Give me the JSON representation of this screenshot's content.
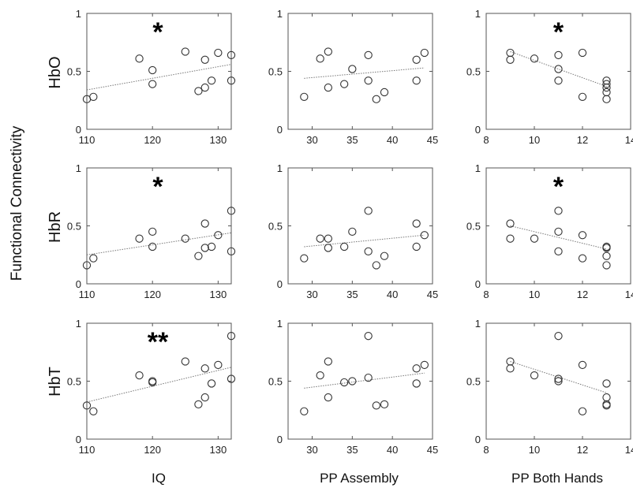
{
  "figure": {
    "ylabel": "Functional Connectivity",
    "row_labels": [
      "HbO",
      "HbR",
      "HbT"
    ],
    "col_labels": [
      "IQ",
      "PP Assembly",
      "PP Both Hands"
    ]
  },
  "chart_data": [
    {
      "type": "scatter",
      "row": "HbO",
      "col": "IQ",
      "xlim": [
        110,
        132
      ],
      "ylim": [
        0,
        1
      ],
      "xticks": [
        110,
        120,
        130
      ],
      "yticks": [
        0,
        0.5,
        1
      ],
      "ytick_labels": [
        "0",
        "0.5",
        "1"
      ],
      "annotation": "*",
      "points": [
        [
          110,
          0.26
        ],
        [
          111,
          0.28
        ],
        [
          118,
          0.61
        ],
        [
          120,
          0.51
        ],
        [
          120,
          0.39
        ],
        [
          125,
          0.67
        ],
        [
          127,
          0.33
        ],
        [
          128,
          0.6
        ],
        [
          128,
          0.36
        ],
        [
          129,
          0.42
        ],
        [
          130,
          0.66
        ],
        [
          132,
          0.64
        ],
        [
          132,
          0.42
        ]
      ],
      "fit": [
        [
          110,
          0.34
        ],
        [
          132,
          0.56
        ]
      ]
    },
    {
      "type": "scatter",
      "row": "HbO",
      "col": "PP Assembly",
      "xlim": [
        27,
        45
      ],
      "ylim": [
        0,
        1
      ],
      "xticks": [
        30,
        35,
        40,
        45
      ],
      "yticks": [
        0,
        0.5,
        1
      ],
      "ytick_labels": [
        "0",
        "0.5",
        "1"
      ],
      "annotation": "",
      "points": [
        [
          29,
          0.28
        ],
        [
          31,
          0.61
        ],
        [
          32,
          0.67
        ],
        [
          32,
          0.36
        ],
        [
          34,
          0.39
        ],
        [
          35,
          0.52
        ],
        [
          37,
          0.64
        ],
        [
          37,
          0.42
        ],
        [
          38,
          0.26
        ],
        [
          39,
          0.32
        ],
        [
          43,
          0.6
        ],
        [
          43,
          0.42
        ],
        [
          44,
          0.66
        ]
      ],
      "fit": [
        [
          29,
          0.44
        ],
        [
          44,
          0.53
        ]
      ]
    },
    {
      "type": "scatter",
      "row": "HbO",
      "col": "PP Both Hands",
      "xlim": [
        8,
        14
      ],
      "ylim": [
        0,
        1
      ],
      "xticks": [
        8,
        10,
        12,
        14
      ],
      "yticks": [
        0,
        0.5,
        1
      ],
      "ytick_labels": [
        "0",
        "0.5",
        "1"
      ],
      "annotation": "*",
      "points": [
        [
          9,
          0.66
        ],
        [
          9,
          0.6
        ],
        [
          10,
          0.61
        ],
        [
          11,
          0.64
        ],
        [
          11,
          0.52
        ],
        [
          11,
          0.42
        ],
        [
          12,
          0.66
        ],
        [
          12,
          0.28
        ],
        [
          13,
          0.42
        ],
        [
          13,
          0.39
        ],
        [
          13,
          0.36
        ],
        [
          13,
          0.32
        ],
        [
          13,
          0.26
        ]
      ],
      "fit": [
        [
          9,
          0.67
        ],
        [
          13,
          0.37
        ]
      ]
    },
    {
      "type": "scatter",
      "row": "HbR",
      "col": "IQ",
      "xlim": [
        110,
        132
      ],
      "ylim": [
        0,
        1
      ],
      "xticks": [
        110,
        120,
        130
      ],
      "yticks": [
        0,
        0.5,
        1
      ],
      "ytick_labels": [
        "0",
        "0.5",
        "1"
      ],
      "annotation": "*",
      "points": [
        [
          110,
          0.16
        ],
        [
          111,
          0.22
        ],
        [
          118,
          0.39
        ],
        [
          120,
          0.45
        ],
        [
          120,
          0.32
        ],
        [
          125,
          0.39
        ],
        [
          127,
          0.24
        ],
        [
          128,
          0.52
        ],
        [
          128,
          0.31
        ],
        [
          129,
          0.32
        ],
        [
          130,
          0.42
        ],
        [
          132,
          0.63
        ],
        [
          132,
          0.28
        ]
      ],
      "fit": [
        [
          110,
          0.25
        ],
        [
          132,
          0.44
        ]
      ]
    },
    {
      "type": "scatter",
      "row": "HbR",
      "col": "PP Assembly",
      "xlim": [
        27,
        45
      ],
      "ylim": [
        0,
        1
      ],
      "xticks": [
        30,
        35,
        40,
        45
      ],
      "yticks": [
        0,
        0.5,
        1
      ],
      "ytick_labels": [
        "0",
        "0.5",
        "1"
      ],
      "annotation": "",
      "points": [
        [
          29,
          0.22
        ],
        [
          31,
          0.39
        ],
        [
          32,
          0.39
        ],
        [
          32,
          0.31
        ],
        [
          34,
          0.32
        ],
        [
          35,
          0.45
        ],
        [
          37,
          0.63
        ],
        [
          37,
          0.28
        ],
        [
          38,
          0.16
        ],
        [
          39,
          0.24
        ],
        [
          43,
          0.52
        ],
        [
          43,
          0.32
        ],
        [
          44,
          0.42
        ]
      ],
      "fit": [
        [
          29,
          0.32
        ],
        [
          44,
          0.42
        ]
      ]
    },
    {
      "type": "scatter",
      "row": "HbR",
      "col": "PP Both Hands",
      "xlim": [
        8,
        14
      ],
      "ylim": [
        0,
        1
      ],
      "xticks": [
        8,
        10,
        12,
        14
      ],
      "yticks": [
        0,
        0.5,
        1
      ],
      "ytick_labels": [
        "0",
        "0.5",
        "1"
      ],
      "annotation": "*",
      "points": [
        [
          9,
          0.52
        ],
        [
          9,
          0.39
        ],
        [
          10,
          0.39
        ],
        [
          11,
          0.63
        ],
        [
          11,
          0.45
        ],
        [
          11,
          0.28
        ],
        [
          12,
          0.42
        ],
        [
          12,
          0.22
        ],
        [
          13,
          0.32
        ],
        [
          13,
          0.31
        ],
        [
          13,
          0.24
        ],
        [
          13,
          0.16
        ]
      ],
      "fit": [
        [
          9,
          0.5
        ],
        [
          13,
          0.3
        ]
      ]
    },
    {
      "type": "scatter",
      "row": "HbT",
      "col": "IQ",
      "xlim": [
        110,
        132
      ],
      "ylim": [
        0,
        1
      ],
      "xticks": [
        110,
        120,
        130
      ],
      "yticks": [
        0,
        0.5,
        1
      ],
      "ytick_labels": [
        "0",
        "0.5",
        "1"
      ],
      "annotation": "**",
      "points": [
        [
          110,
          0.29
        ],
        [
          111,
          0.24
        ],
        [
          118,
          0.55
        ],
        [
          120,
          0.5
        ],
        [
          120,
          0.49
        ],
        [
          125,
          0.67
        ],
        [
          127,
          0.3
        ],
        [
          128,
          0.61
        ],
        [
          128,
          0.36
        ],
        [
          129,
          0.48
        ],
        [
          130,
          0.64
        ],
        [
          132,
          0.89
        ],
        [
          132,
          0.52
        ]
      ],
      "fit": [
        [
          110,
          0.32
        ],
        [
          132,
          0.62
        ]
      ]
    },
    {
      "type": "scatter",
      "row": "HbT",
      "col": "PP Assembly",
      "xlim": [
        27,
        45
      ],
      "ylim": [
        0,
        1
      ],
      "xticks": [
        30,
        35,
        40,
        45
      ],
      "yticks": [
        0,
        0.5,
        1
      ],
      "ytick_labels": [
        "0",
        "0.5",
        "1"
      ],
      "annotation": "",
      "points": [
        [
          29,
          0.24
        ],
        [
          31,
          0.55
        ],
        [
          32,
          0.67
        ],
        [
          32,
          0.36
        ],
        [
          34,
          0.49
        ],
        [
          35,
          0.5
        ],
        [
          37,
          0.89
        ],
        [
          37,
          0.53
        ],
        [
          38,
          0.29
        ],
        [
          39,
          0.3
        ],
        [
          43,
          0.61
        ],
        [
          43,
          0.48
        ],
        [
          44,
          0.64
        ]
      ],
      "fit": [
        [
          29,
          0.44
        ],
        [
          44,
          0.57
        ]
      ]
    },
    {
      "type": "scatter",
      "row": "HbT",
      "col": "PP Both Hands",
      "xlim": [
        8,
        14
      ],
      "ylim": [
        0,
        1
      ],
      "xticks": [
        8,
        10,
        12,
        14
      ],
      "yticks": [
        0,
        0.5,
        1
      ],
      "ytick_labels": [
        "0",
        "0.5",
        "1"
      ],
      "annotation": "",
      "points": [
        [
          9,
          0.67
        ],
        [
          9,
          0.61
        ],
        [
          10,
          0.55
        ],
        [
          11,
          0.89
        ],
        [
          11,
          0.52
        ],
        [
          11,
          0.5
        ],
        [
          12,
          0.64
        ],
        [
          12,
          0.24
        ],
        [
          13,
          0.48
        ],
        [
          13,
          0.36
        ],
        [
          13,
          0.3
        ],
        [
          13,
          0.29
        ]
      ],
      "fit": [
        [
          9,
          0.67
        ],
        [
          13,
          0.4
        ]
      ]
    }
  ]
}
